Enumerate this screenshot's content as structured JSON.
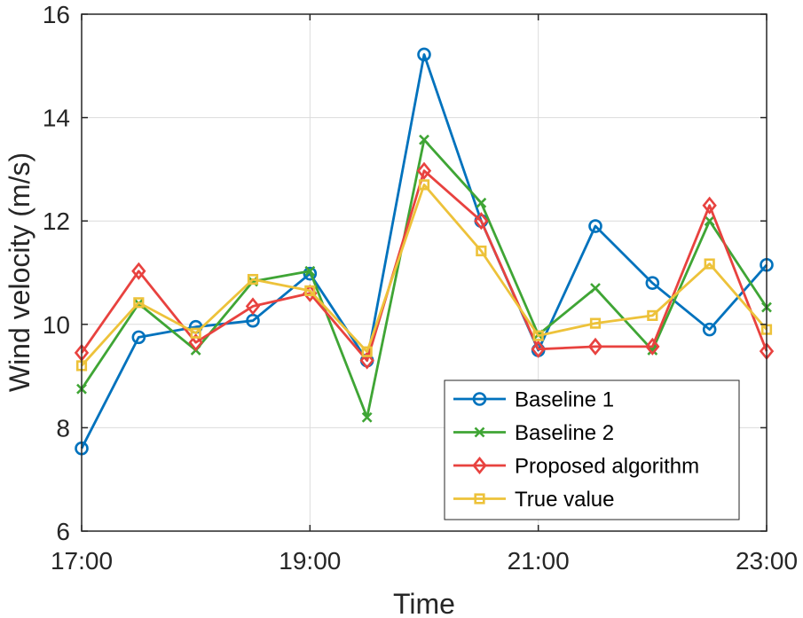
{
  "chart_data": {
    "type": "line",
    "title": "",
    "xlabel": "Time",
    "ylabel": "Wind velocity (m/s)",
    "x": [
      0,
      0.5,
      1,
      1.5,
      2,
      2.5,
      3,
      3.5,
      4,
      4.5,
      5,
      5.5,
      6
    ],
    "xticks": [
      0,
      2,
      4,
      6
    ],
    "xtick_labels": [
      "17:00",
      "19:00",
      "21:00",
      "23:00"
    ],
    "xlim": [
      0,
      6
    ],
    "ylim": [
      6,
      16
    ],
    "yticks": [
      6,
      8,
      10,
      12,
      14,
      16
    ],
    "ytick_labels": [
      "6",
      "8",
      "10",
      "12",
      "14",
      "16"
    ],
    "grid": true,
    "legend_position": "bottom-right",
    "series": [
      {
        "name": "Baseline 1",
        "color": "#0072BD",
        "marker": "circle",
        "values": [
          7.6,
          9.75,
          9.95,
          10.07,
          10.98,
          9.3,
          15.22,
          12.0,
          9.5,
          11.9,
          10.8,
          9.9,
          11.15
        ]
      },
      {
        "name": "Baseline 2",
        "color": "#3FA535",
        "marker": "x",
        "values": [
          8.75,
          10.4,
          9.5,
          10.83,
          11.03,
          8.2,
          13.57,
          12.35,
          9.8,
          10.7,
          9.5,
          12.0,
          10.33
        ]
      },
      {
        "name": "Proposed algorithm",
        "color": "#E8423F",
        "marker": "diamond",
        "values": [
          9.45,
          11.03,
          9.65,
          10.35,
          10.6,
          9.3,
          12.97,
          12.0,
          9.52,
          9.57,
          9.57,
          12.3,
          9.48
        ]
      },
      {
        "name": "True value",
        "color": "#EDC23A",
        "marker": "square",
        "values": [
          9.2,
          10.42,
          9.83,
          10.87,
          10.65,
          9.47,
          12.7,
          11.42,
          9.78,
          10.02,
          10.17,
          11.17,
          9.9
        ]
      }
    ]
  }
}
